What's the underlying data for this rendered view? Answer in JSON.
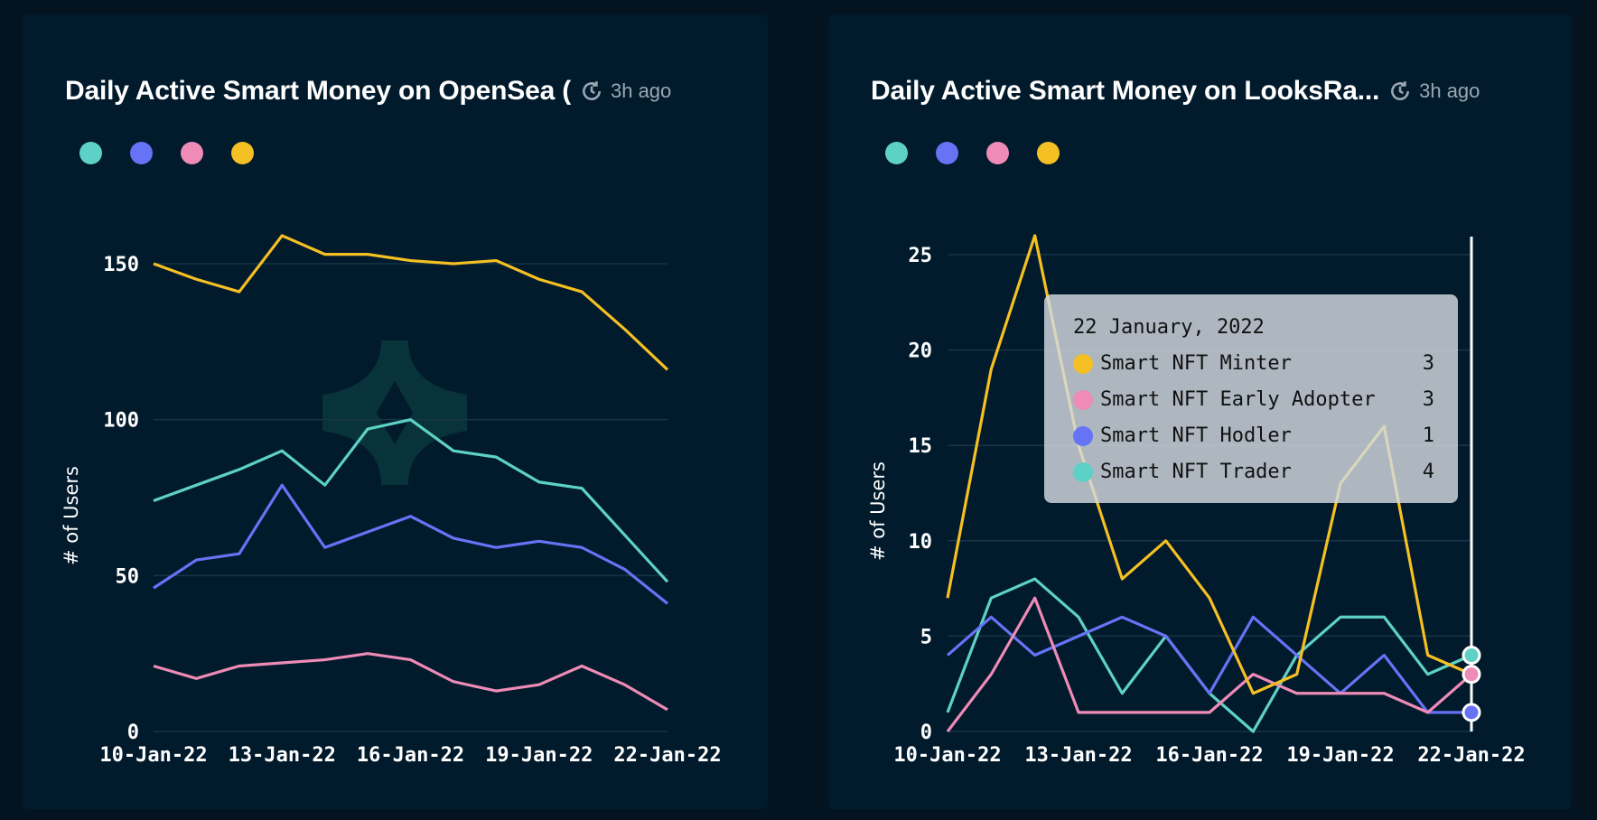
{
  "colors": {
    "trader": "#5ed1c6",
    "hodler": "#6673f5",
    "early_adopter": "#ee8bb6",
    "minter": "#f5c023",
    "grid": "#173548",
    "axis_text": "#ffffff"
  },
  "chart_data": [
    {
      "type": "line",
      "title": "Daily Active Smart Money on OpenSea (",
      "updated": "3h ago",
      "ylabel": "# of Users",
      "xlabel": "",
      "x": [
        "10-Jan-22",
        "11-Jan-22",
        "12-Jan-22",
        "13-Jan-22",
        "14-Jan-22",
        "15-Jan-22",
        "16-Jan-22",
        "17-Jan-22",
        "18-Jan-22",
        "19-Jan-22",
        "20-Jan-22",
        "21-Jan-22",
        "22-Jan-22"
      ],
      "xticks": [
        "10-Jan-22",
        "13-Jan-22",
        "16-Jan-22",
        "19-Jan-22",
        "22-Jan-22"
      ],
      "yticks": [
        0,
        50,
        100,
        150
      ],
      "ylim": [
        0,
        165
      ],
      "grid": true,
      "legend": "top-left",
      "series": [
        {
          "key": "trader",
          "values": [
            74,
            79,
            84,
            90,
            79,
            97,
            100,
            90,
            88,
            80,
            78,
            63,
            48
          ]
        },
        {
          "key": "hodler",
          "values": [
            46,
            55,
            57,
            79,
            59,
            64,
            69,
            62,
            59,
            61,
            59,
            52,
            41
          ]
        },
        {
          "key": "early_adopter",
          "values": [
            21,
            17,
            21,
            22,
            23,
            25,
            23,
            16,
            13,
            15,
            21,
            15,
            7
          ]
        },
        {
          "key": "minter",
          "values": [
            150,
            145,
            141,
            159,
            153,
            153,
            151,
            150,
            151,
            145,
            141,
            129,
            116
          ]
        }
      ]
    },
    {
      "type": "line",
      "title": "Daily Active Smart Money on LooksRa...",
      "updated": "3h ago",
      "ylabel": "# of Users",
      "xlabel": "",
      "x": [
        "10-Jan-22",
        "11-Jan-22",
        "12-Jan-22",
        "13-Jan-22",
        "14-Jan-22",
        "15-Jan-22",
        "16-Jan-22",
        "17-Jan-22",
        "18-Jan-22",
        "19-Jan-22",
        "20-Jan-22",
        "21-Jan-22",
        "22-Jan-22"
      ],
      "xticks": [
        "10-Jan-22",
        "13-Jan-22",
        "16-Jan-22",
        "19-Jan-22",
        "22-Jan-22"
      ],
      "yticks": [
        0,
        5,
        10,
        15,
        20,
        25
      ],
      "ylim": [
        0,
        27
      ],
      "grid": true,
      "legend": "top-left",
      "series": [
        {
          "key": "trader",
          "values": [
            1,
            7,
            8,
            6,
            2,
            5,
            2,
            0,
            4,
            6,
            6,
            3,
            4
          ]
        },
        {
          "key": "hodler",
          "values": [
            4,
            6,
            4,
            5,
            6,
            5,
            2,
            6,
            4,
            2,
            4,
            1,
            1
          ]
        },
        {
          "key": "early_adopter",
          "values": [
            0,
            3,
            7,
            1,
            1,
            1,
            1,
            3,
            2,
            2,
            2,
            1,
            3
          ]
        },
        {
          "key": "minter",
          "values": [
            7,
            19,
            26,
            15,
            8,
            10,
            7,
            2,
            3,
            13,
            16,
            4,
            3
          ]
        }
      ],
      "tooltip": {
        "date": "22 January, 2022",
        "rows": [
          {
            "key": "minter",
            "label": "Smart NFT Minter",
            "value": "3"
          },
          {
            "key": "early_adopter",
            "label": "Smart NFT Early Adopter",
            "value": "3"
          },
          {
            "key": "hodler",
            "label": "Smart NFT Hodler",
            "value": "1"
          },
          {
            "key": "trader",
            "label": "Smart NFT Trader",
            "value": "4"
          }
        ]
      }
    }
  ]
}
